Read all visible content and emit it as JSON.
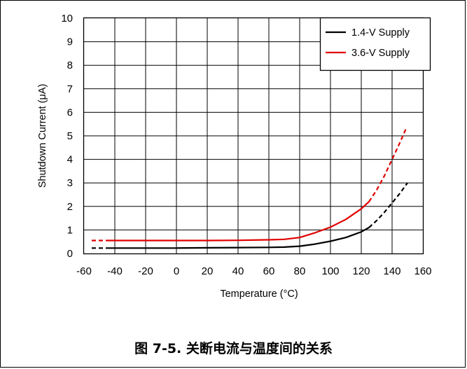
{
  "caption": "图 7-5. 关断电流与温度间的关系",
  "chart_data": {
    "type": "line",
    "xlabel": "Temperature (°C)",
    "ylabel": "Shutdown Current (μA)",
    "xlim": [
      -60,
      160
    ],
    "ylim": [
      0,
      10
    ],
    "xticks": [
      -60,
      -40,
      -20,
      0,
      20,
      40,
      60,
      80,
      100,
      120,
      140,
      160
    ],
    "yticks": [
      0,
      1,
      2,
      3,
      4,
      5,
      6,
      7,
      8,
      9,
      10
    ],
    "grid": true,
    "legend_position": "top-right",
    "series": [
      {
        "name": "1.4-V Supply",
        "color": "#000000",
        "dashed_before": [
          [
            -55,
            0.23
          ],
          [
            -45,
            0.23
          ]
        ],
        "solid": [
          [
            -45,
            0.23
          ],
          [
            -20,
            0.23
          ],
          [
            0,
            0.23
          ],
          [
            20,
            0.24
          ],
          [
            40,
            0.25
          ],
          [
            60,
            0.26
          ],
          [
            70,
            0.27
          ],
          [
            80,
            0.31
          ],
          [
            90,
            0.4
          ],
          [
            100,
            0.52
          ],
          [
            110,
            0.68
          ],
          [
            120,
            0.92
          ],
          [
            125,
            1.1
          ]
        ],
        "dashed_after": [
          [
            125,
            1.1
          ],
          [
            130,
            1.4
          ],
          [
            135,
            1.75
          ],
          [
            140,
            2.15
          ],
          [
            145,
            2.55
          ],
          [
            150,
            3.0
          ]
        ]
      },
      {
        "name": "3.6-V Supply",
        "color": "#e00000",
        "dashed_before": [
          [
            -55,
            0.55
          ],
          [
            -45,
            0.55
          ]
        ],
        "solid": [
          [
            -45,
            0.55
          ],
          [
            -20,
            0.55
          ],
          [
            0,
            0.55
          ],
          [
            20,
            0.55
          ],
          [
            40,
            0.56
          ],
          [
            60,
            0.58
          ],
          [
            70,
            0.6
          ],
          [
            80,
            0.68
          ],
          [
            90,
            0.88
          ],
          [
            100,
            1.12
          ],
          [
            110,
            1.45
          ],
          [
            120,
            1.9
          ],
          [
            125,
            2.2
          ]
        ],
        "dashed_after": [
          [
            125,
            2.2
          ],
          [
            130,
            2.7
          ],
          [
            135,
            3.3
          ],
          [
            140,
            4.0
          ],
          [
            145,
            4.7
          ],
          [
            149,
            5.3
          ]
        ]
      }
    ]
  }
}
